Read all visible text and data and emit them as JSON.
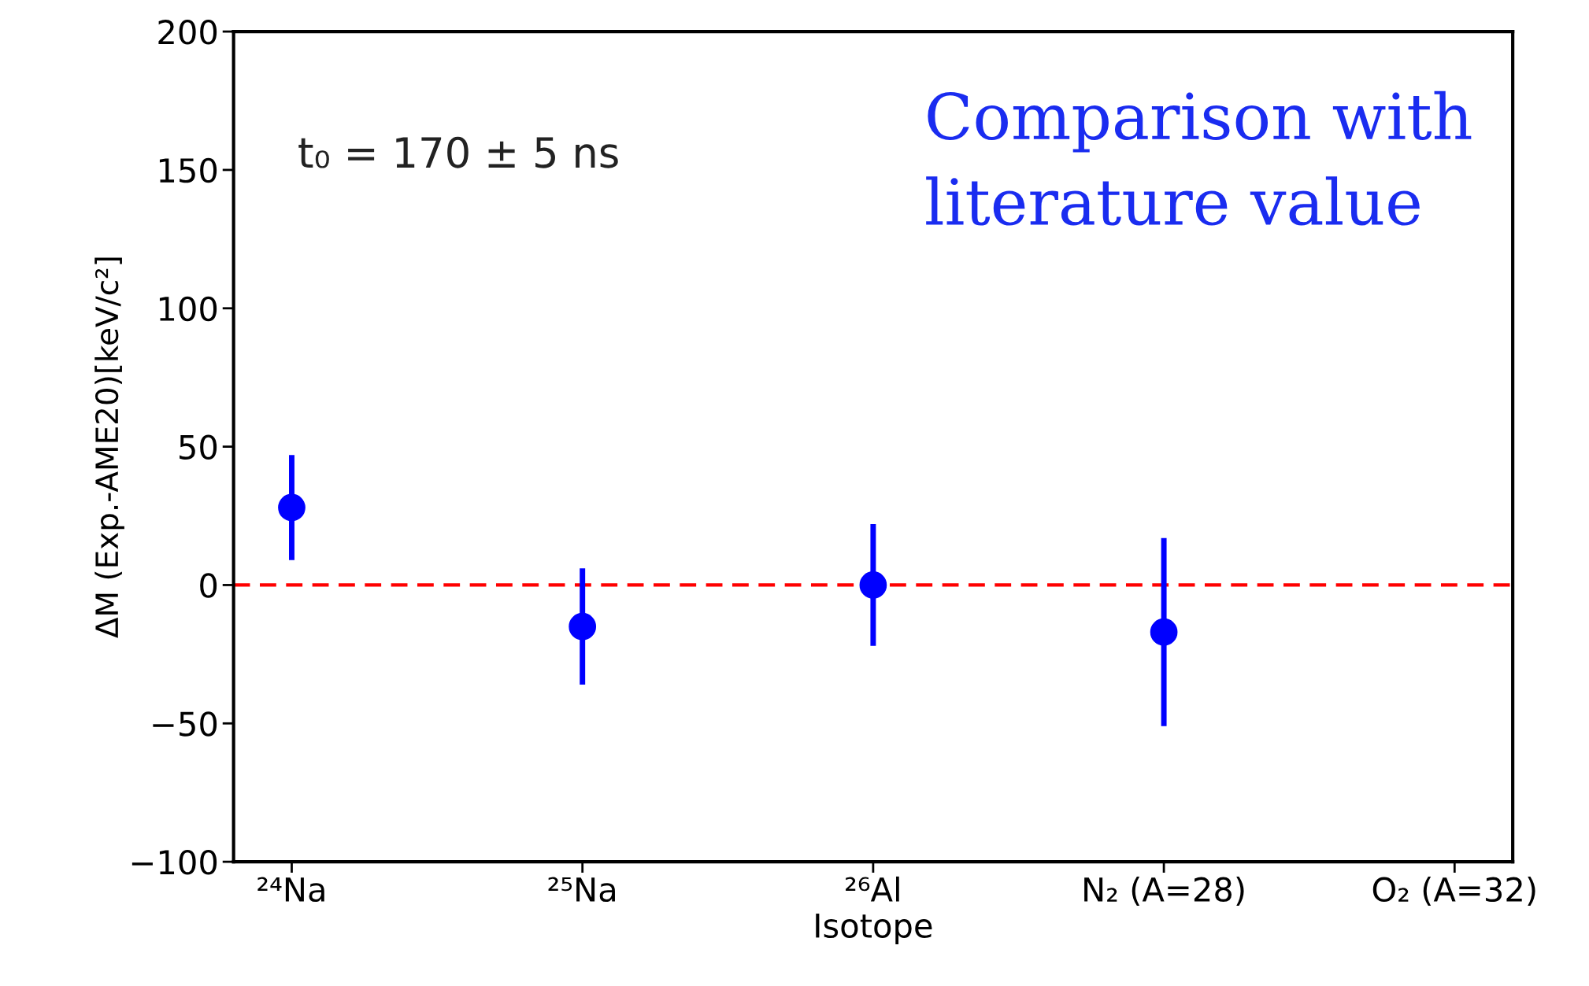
{
  "chart_data": {
    "type": "scatter",
    "xlabel": "Isotope",
    "ylabel": "ΔM (Exp.-AME20)[keV/c²]",
    "categories": [
      "²⁴Na",
      "²⁵Na",
      "²⁶Al",
      "N₂ (A=28)",
      "O₂ (A=32)"
    ],
    "series": [
      {
        "color": "#0000ff",
        "values": [
          28,
          -15,
          0,
          -17,
          null
        ],
        "errors": [
          19,
          21,
          22,
          34,
          null
        ]
      }
    ],
    "ylim": [
      -100,
      200
    ],
    "yticks": [
      -100,
      -50,
      0,
      50,
      100,
      150,
      200
    ],
    "ref_lines": [
      {
        "axis": "y",
        "value": 0,
        "color": "#ff0000",
        "line_style": "dashed"
      }
    ],
    "marker": "circle",
    "grid": false,
    "legend": false,
    "annotations": [
      "t₀ = 170 ± 5 ns",
      "Comparison with\nliterature value"
    ]
  }
}
